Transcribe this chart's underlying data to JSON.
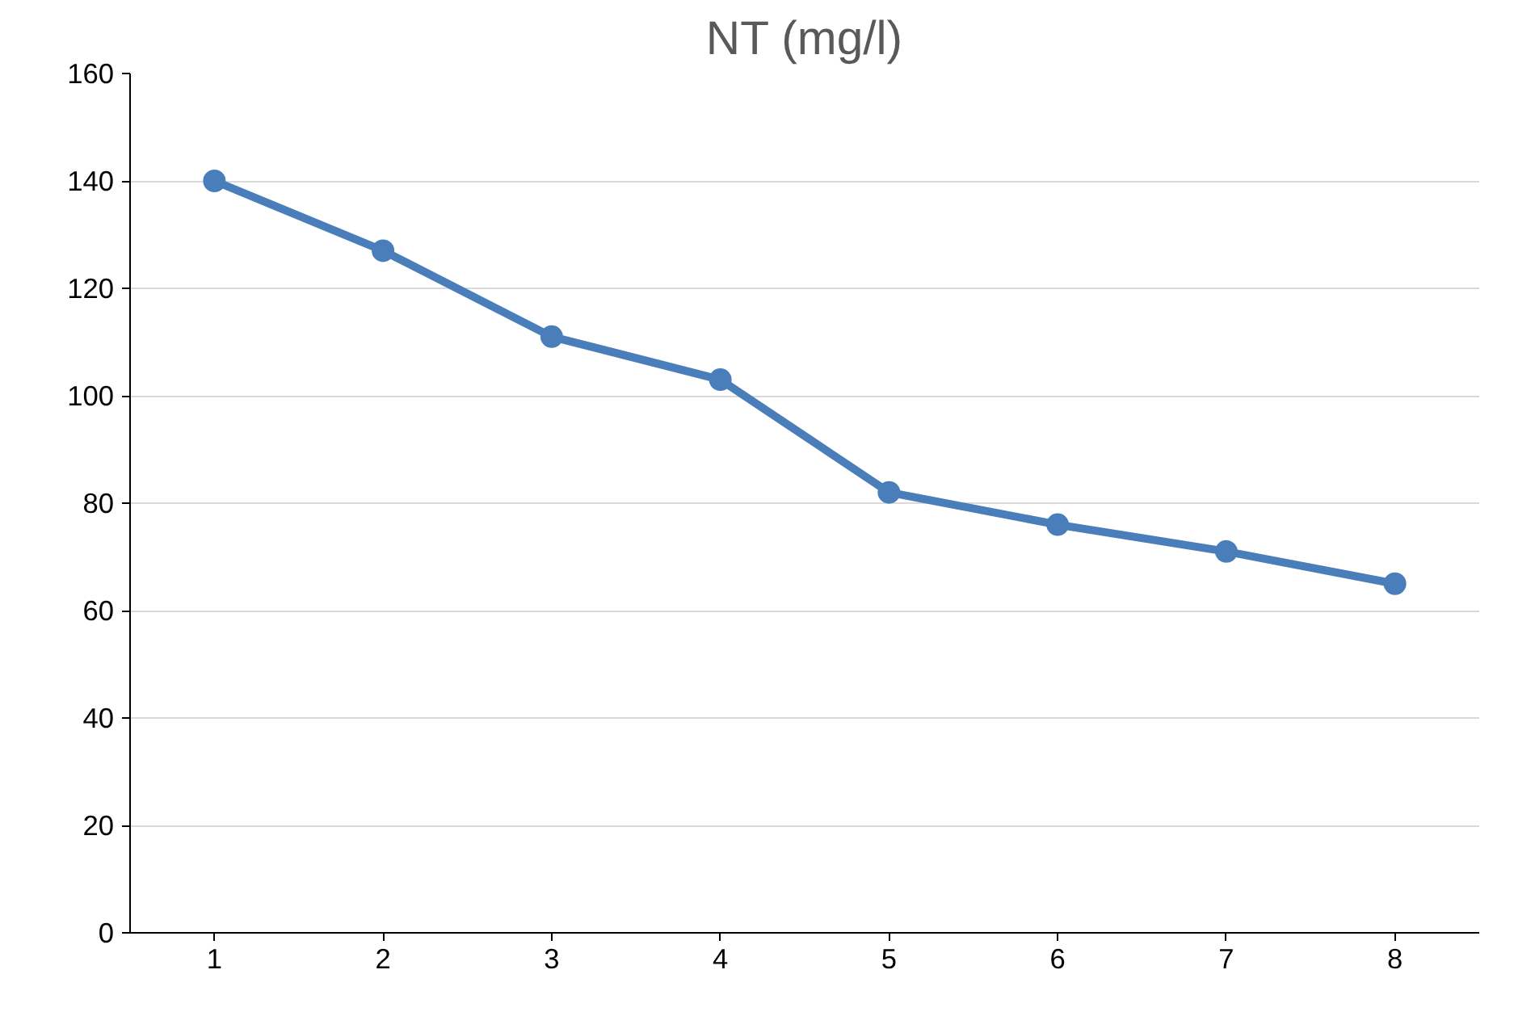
{
  "chart_data": {
    "type": "line",
    "title": "NT (mg/l)",
    "categories": [
      "1",
      "2",
      "3",
      "4",
      "5",
      "6",
      "7",
      "8"
    ],
    "series": [
      {
        "color": "#4a7ebb",
        "values": [
          140,
          127,
          111,
          103,
          82,
          76,
          71,
          65
        ]
      }
    ],
    "ylim": [
      0,
      160
    ],
    "yticks": [
      0,
      20,
      40,
      60,
      80,
      100,
      120,
      140,
      160
    ],
    "grid": "y",
    "marker": "circle",
    "line_style": "solid"
  }
}
